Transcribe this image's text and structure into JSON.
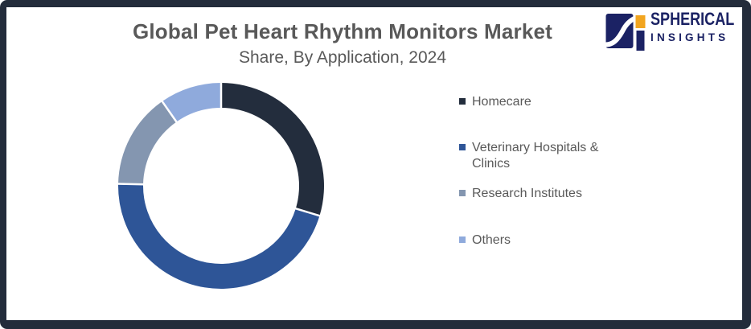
{
  "frame": {
    "border_color": "#232C3B",
    "background": "#FFFFFF"
  },
  "header": {
    "title": "Global Pet Heart Rhythm Monitors Market",
    "subtitle": "Share, By Application, 2024",
    "text_color": "#595959"
  },
  "logo": {
    "brand_line1": "SPHERICAL",
    "brand_line2": "INSIGHTS",
    "navy": "#1B2264",
    "orange": "#F2A51F"
  },
  "chart_data": {
    "type": "pie",
    "subtype": "donut",
    "title": "Global Pet Heart Rhythm Monitors Market Share, By Application, 2024",
    "categories": [
      "Homecare",
      "Veterinary Hospitals & Clinics",
      "Research Institutes",
      "Others"
    ],
    "values": [
      29.7,
      45.6,
      15.0,
      9.7
    ],
    "values_unit": "% market share (estimated from arc angles)",
    "colors": [
      "#232D3D",
      "#2E5597",
      "#8496B0",
      "#8FAADC"
    ],
    "start_angle_deg": 0,
    "direction": "clockwise",
    "inner_radius_ratio": 0.76,
    "separator_color": "#FFFFFF",
    "legend_position": "right",
    "data_labels": "none"
  },
  "legend": {
    "text_color": "#595959",
    "items": [
      {
        "label": "Homecare",
        "color": "#232D3D"
      },
      {
        "label": "Veterinary Hospitals & Clinics",
        "color": "#2E5597"
      },
      {
        "label": "Research Institutes",
        "color": "#8496B0"
      },
      {
        "label": "Others",
        "color": "#8FAADC"
      }
    ]
  }
}
